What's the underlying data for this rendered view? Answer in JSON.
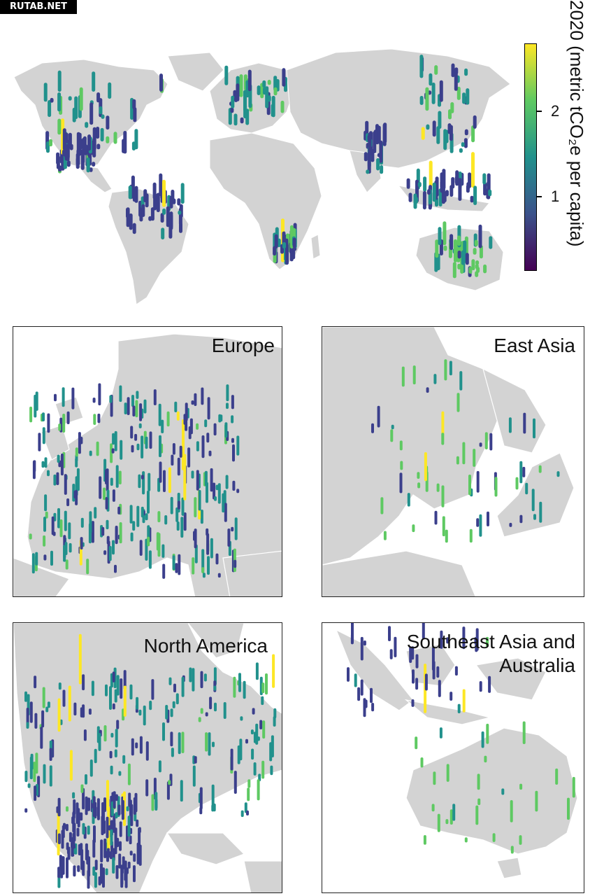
{
  "watermark": "RUTAB.NET",
  "colorbar": {
    "title": "2020 (metric tCO₂e per capita)",
    "ticks": [
      {
        "value": 1,
        "label": "1"
      },
      {
        "value": 2,
        "label": "2"
      }
    ],
    "colormap": [
      "#440154",
      "#3b528b",
      "#21918c",
      "#5ec962",
      "#fde725"
    ]
  },
  "panels": [
    {
      "id": "europe",
      "title": "Europe"
    },
    {
      "id": "east-asia",
      "title": "East Asia"
    },
    {
      "id": "north-america",
      "title": "North America"
    },
    {
      "id": "southeast-asia",
      "title": "Southeast Asia and Australia"
    }
  ],
  "colors": {
    "land": "#d3d3d3",
    "border": "#ffffff",
    "low": "#3b3f8c",
    "mid": "#21918c",
    "high": "#5ec962",
    "top": "#fde725"
  }
}
